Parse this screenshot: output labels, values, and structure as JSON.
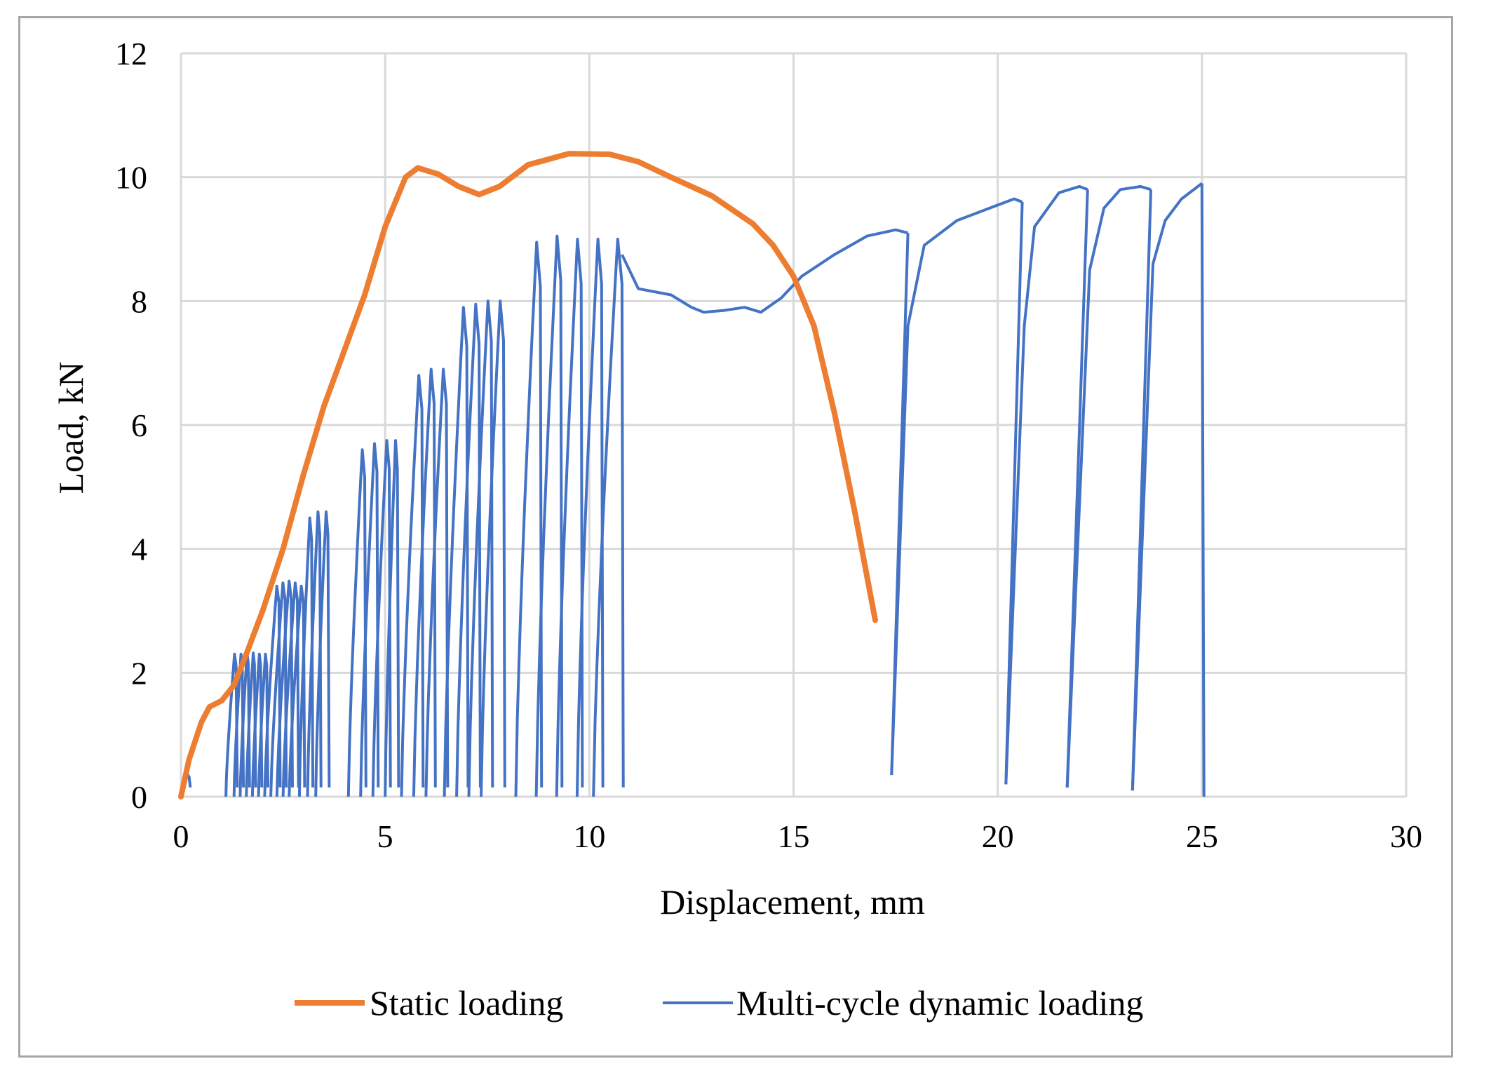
{
  "chart_data": {
    "type": "line",
    "title": "",
    "xlabel": "Displacement, mm",
    "ylabel": "Load, kN",
    "xlim": [
      0,
      30
    ],
    "ylim": [
      0,
      12
    ],
    "x_ticks": [
      "0",
      "5",
      "10",
      "15",
      "20",
      "25",
      "30"
    ],
    "y_ticks": [
      "0",
      "2",
      "4",
      "6",
      "8",
      "10",
      "12"
    ],
    "grid": true,
    "legend_position": "bottom",
    "series": [
      {
        "name": "Static loading",
        "color": "#ed7d31",
        "points": [
          [
            0,
            0
          ],
          [
            0.2,
            0.6
          ],
          [
            0.5,
            1.2
          ],
          [
            0.7,
            1.45
          ],
          [
            1.0,
            1.55
          ],
          [
            1.3,
            1.8
          ],
          [
            1.6,
            2.3
          ],
          [
            2.0,
            3.0
          ],
          [
            2.5,
            4.0
          ],
          [
            3.0,
            5.2
          ],
          [
            3.5,
            6.3
          ],
          [
            4.0,
            7.2
          ],
          [
            4.5,
            8.1
          ],
          [
            5.0,
            9.2
          ],
          [
            5.5,
            10.0
          ],
          [
            5.8,
            10.15
          ],
          [
            6.3,
            10.05
          ],
          [
            6.8,
            9.85
          ],
          [
            7.3,
            9.72
          ],
          [
            7.8,
            9.85
          ],
          [
            8.5,
            10.2
          ],
          [
            9.5,
            10.38
          ],
          [
            10.5,
            10.37
          ],
          [
            11.2,
            10.25
          ],
          [
            12.0,
            10.0
          ],
          [
            13.0,
            9.7
          ],
          [
            14.0,
            9.25
          ],
          [
            14.5,
            8.9
          ],
          [
            15.0,
            8.4
          ],
          [
            15.5,
            7.6
          ],
          [
            16.0,
            6.2
          ],
          [
            16.5,
            4.6
          ],
          [
            17.0,
            2.85
          ]
        ]
      },
      {
        "name": "Multi-cycle dynamic loading",
        "color": "#4472c4",
        "cycles": [
          {
            "start": 0.0,
            "end": 0.2,
            "peak": 0.35
          },
          {
            "start": 1.1,
            "end": 1.35,
            "peak": 2.3
          },
          {
            "start": 1.3,
            "end": 1.5,
            "peak": 2.3
          },
          {
            "start": 1.45,
            "end": 1.65,
            "peak": 2.32
          },
          {
            "start": 1.6,
            "end": 1.8,
            "peak": 2.32
          },
          {
            "start": 1.75,
            "end": 1.95,
            "peak": 2.3
          },
          {
            "start": 1.9,
            "end": 2.1,
            "peak": 2.3
          },
          {
            "start": 2.05,
            "end": 2.4,
            "peak": 3.4
          },
          {
            "start": 2.2,
            "end": 2.55,
            "peak": 3.45
          },
          {
            "start": 2.35,
            "end": 2.7,
            "peak": 3.48
          },
          {
            "start": 2.5,
            "end": 2.85,
            "peak": 3.45
          },
          {
            "start": 2.65,
            "end": 3.0,
            "peak": 3.4
          },
          {
            "start": 2.9,
            "end": 3.2,
            "peak": 4.5
          },
          {
            "start": 3.1,
            "end": 3.4,
            "peak": 4.6
          },
          {
            "start": 3.3,
            "end": 3.6,
            "peak": 4.6
          },
          {
            "start": 4.1,
            "end": 4.5,
            "peak": 5.6
          },
          {
            "start": 4.4,
            "end": 4.8,
            "peak": 5.7
          },
          {
            "start": 4.7,
            "end": 5.1,
            "peak": 5.75
          },
          {
            "start": 5.0,
            "end": 5.3,
            "peak": 5.75
          },
          {
            "start": 5.4,
            "end": 5.9,
            "peak": 6.8
          },
          {
            "start": 5.7,
            "end": 6.2,
            "peak": 6.9
          },
          {
            "start": 6.0,
            "end": 6.5,
            "peak": 6.9
          },
          {
            "start": 6.45,
            "end": 7.0,
            "peak": 7.9
          },
          {
            "start": 6.75,
            "end": 7.3,
            "peak": 7.95
          },
          {
            "start": 7.05,
            "end": 7.6,
            "peak": 8.0
          },
          {
            "start": 7.35,
            "end": 7.9,
            "peak": 8.0
          },
          {
            "start": 8.2,
            "end": 8.8,
            "peak": 8.95
          },
          {
            "start": 8.7,
            "end": 9.3,
            "peak": 9.05
          },
          {
            "start": 9.2,
            "end": 9.8,
            "peak": 9.0
          },
          {
            "start": 9.7,
            "end": 10.3,
            "peak": 9.0
          },
          {
            "start": 10.1,
            "end": 10.8,
            "peak": 9.0
          }
        ],
        "envelope": [
          [
            10.8,
            8.75
          ],
          [
            11.2,
            8.2
          ],
          [
            12.0,
            8.1
          ],
          [
            12.5,
            7.9
          ],
          [
            12.8,
            7.82
          ],
          [
            13.3,
            7.85
          ],
          [
            13.8,
            7.9
          ],
          [
            14.2,
            7.82
          ],
          [
            14.7,
            8.05
          ],
          [
            15.2,
            8.4
          ],
          [
            16.0,
            8.75
          ],
          [
            16.8,
            9.05
          ],
          [
            17.5,
            9.15
          ],
          [
            17.8,
            9.1
          ]
        ],
        "late_cycles": [
          {
            "x_low": 17.4,
            "y_low": 0.35,
            "x_drop": 17.8,
            "y_after": 7.6,
            "points": [
              [
                17.8,
                7.6
              ],
              [
                18.2,
                8.9
              ],
              [
                19.0,
                9.3
              ],
              [
                20.0,
                9.55
              ],
              [
                20.4,
                9.65
              ],
              [
                20.6,
                9.6
              ]
            ]
          },
          {
            "x_low": 20.2,
            "y_low": 0.2,
            "x_drop": 20.65,
            "y_after": 7.6,
            "points": [
              [
                20.65,
                7.6
              ],
              [
                20.9,
                9.2
              ],
              [
                21.5,
                9.75
              ],
              [
                22.0,
                9.85
              ],
              [
                22.2,
                9.8
              ]
            ]
          },
          {
            "x_low": 21.7,
            "y_low": 0.15,
            "x_drop": 22.25,
            "y_after": 8.5,
            "points": [
              [
                22.25,
                8.5
              ],
              [
                22.6,
                9.5
              ],
              [
                23.0,
                9.8
              ],
              [
                23.5,
                9.85
              ],
              [
                23.75,
                9.8
              ]
            ]
          },
          {
            "x_low": 23.3,
            "y_low": 0.1,
            "x_drop": 23.8,
            "y_after": 8.6,
            "points": [
              [
                23.8,
                8.6
              ],
              [
                24.1,
                9.3
              ],
              [
                24.5,
                9.65
              ],
              [
                25.0,
                9.9
              ]
            ]
          }
        ],
        "final_drop": [
          25.05,
          0
        ]
      }
    ]
  }
}
